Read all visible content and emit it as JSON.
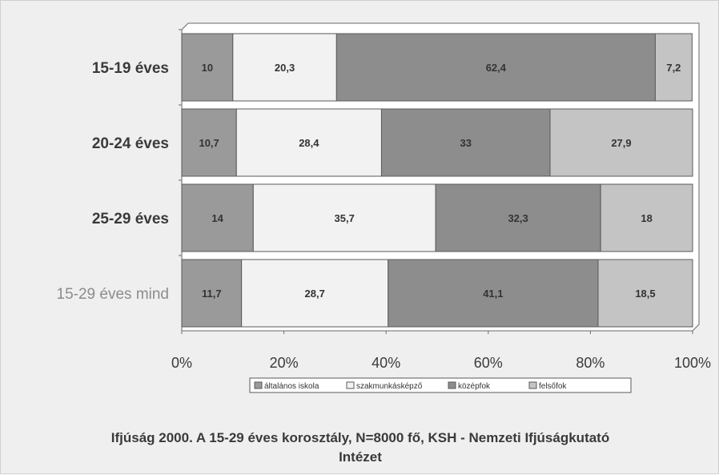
{
  "chart_data": {
    "type": "bar",
    "orientation": "horizontal",
    "stacked": "percent",
    "categories": [
      "15-19 éves",
      "20-24 éves",
      "25-29 éves",
      "15-29 éves mind"
    ],
    "series": [
      {
        "name": "általános iskola",
        "values": [
          10,
          10.7,
          14,
          11.7
        ],
        "labels": [
          "10",
          "10,7",
          "14",
          "11,7"
        ]
      },
      {
        "name": "szakmunkásképző",
        "values": [
          20.3,
          28.4,
          35.7,
          28.7
        ],
        "labels": [
          "20,3",
          "28,4",
          "35,7",
          "28,7"
        ]
      },
      {
        "name": "középfok",
        "values": [
          62.4,
          33,
          32.3,
          41.1
        ],
        "labels": [
          "62,4",
          "33",
          "32,3",
          "41,1"
        ]
      },
      {
        "name": "felsőfok",
        "values": [
          7.2,
          27.9,
          18,
          18.5
        ],
        "labels": [
          "7,2",
          "27,9",
          "18",
          "18,5"
        ]
      }
    ],
    "xlim": [
      0,
      100
    ],
    "x_ticks": [
      "0%",
      "20%",
      "40%",
      "60%",
      "80%",
      "100%"
    ],
    "grid": true,
    "legend_position": "bottom",
    "colors": {
      "series": [
        "#9a9a9a",
        "#f2f2f2",
        "#8d8d8d",
        "#c4c4c4"
      ],
      "stroke": "#5a5a5a",
      "background": "#efefef",
      "text": "#3a3a3a",
      "last_category_text": "#8c8c8c"
    },
    "caption_lines": [
      "Ifjúság 2000. A 15-29 éves korosztály, N=8000 fő, KSH - Nemzeti Ifjúságkutató",
      "Intézet"
    ]
  }
}
